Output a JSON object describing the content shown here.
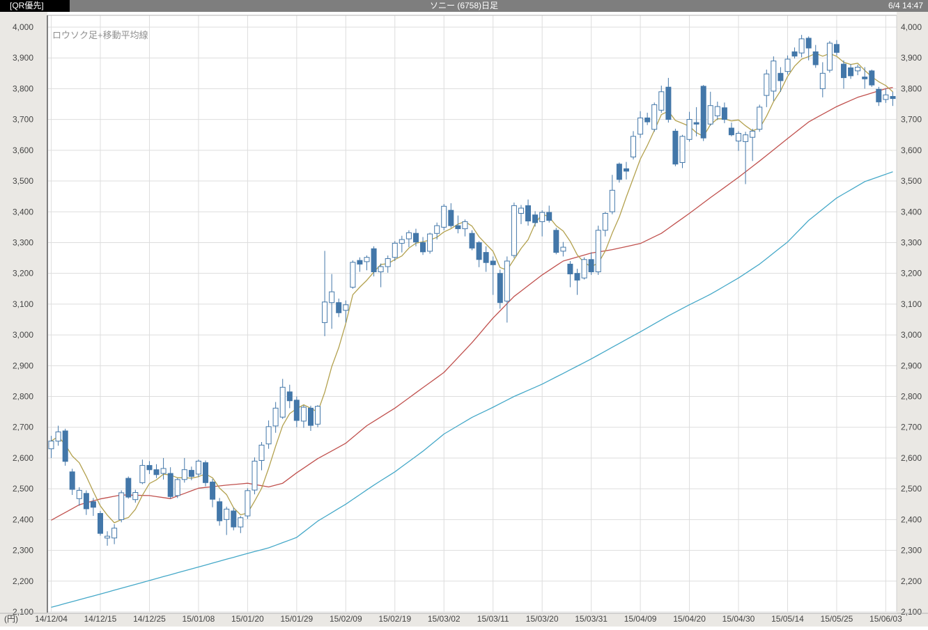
{
  "header": {
    "left_badge": "[QR優先]",
    "title": "ソニー (6758)日足",
    "time": "6/4 14:47"
  },
  "chart": {
    "legend_label": "ロウソク足+移動平均線",
    "unit_label": "(円)",
    "colors": {
      "header_bg": "#7e7e7e",
      "header_box_bg": "#000000",
      "axis_strip_bg": "#eae8e4",
      "plot_bg": "#ffffff",
      "grid": "#dddddd",
      "axis_line": "#7f7f7f",
      "border_line": "#b2b2b2",
      "label_text": "#444444",
      "legend_text": "#8f8f8f",
      "candle_up_fill": "#ffffff",
      "candle_down_fill": "#4377a9",
      "candle_stroke": "#4377a9",
      "ma_short": "#b3a14e",
      "ma_mid": "#c0504d",
      "ma_long": "#44a8c8"
    }
  },
  "chart_data": {
    "type": "candlestick",
    "title": "ソニー (6758)日足",
    "legend": "ロウソク足+移動平均線",
    "y_axis": {
      "min": 2100,
      "max": 4000,
      "step": 100,
      "unit": "円",
      "sides": [
        "left",
        "right"
      ]
    },
    "grid": true,
    "x_ticks": [
      {
        "i": 0,
        "label": "14/12/04"
      },
      {
        "i": 7,
        "label": "14/12/15"
      },
      {
        "i": 14,
        "label": "14/12/25"
      },
      {
        "i": 21,
        "label": "15/01/08"
      },
      {
        "i": 28,
        "label": "15/01/20"
      },
      {
        "i": 35,
        "label": "15/01/29"
      },
      {
        "i": 42,
        "label": "15/02/09"
      },
      {
        "i": 49,
        "label": "15/02/19"
      },
      {
        "i": 56,
        "label": "15/03/02"
      },
      {
        "i": 63,
        "label": "15/03/11"
      },
      {
        "i": 70,
        "label": "15/03/20"
      },
      {
        "i": 77,
        "label": "15/03/31"
      },
      {
        "i": 84,
        "label": "15/04/09"
      },
      {
        "i": 91,
        "label": "15/04/20"
      },
      {
        "i": 98,
        "label": "15/04/30"
      },
      {
        "i": 105,
        "label": "15/05/14"
      },
      {
        "i": 112,
        "label": "15/05/25"
      },
      {
        "i": 119,
        "label": "15/06/03"
      }
    ],
    "candle_format": [
      "date",
      "open",
      "high",
      "low",
      "close"
    ],
    "candles": [
      [
        "14/12/04",
        2630,
        2672,
        2600,
        2655
      ],
      [
        "14/12/05",
        2655,
        2705,
        2640,
        2685
      ],
      [
        "14/12/08",
        2688,
        2695,
        2575,
        2589
      ],
      [
        "14/12/09",
        2555,
        2565,
        2480,
        2498
      ],
      [
        "14/12/10",
        2468,
        2505,
        2445,
        2495
      ],
      [
        "14/12/11",
        2485,
        2495,
        2415,
        2435
      ],
      [
        "14/12/12",
        2458,
        2470,
        2412,
        2440
      ],
      [
        "14/12/15",
        2420,
        2428,
        2348,
        2355
      ],
      [
        "14/12/16",
        2340,
        2362,
        2315,
        2346
      ],
      [
        "14/12/17",
        2340,
        2385,
        2320,
        2372
      ],
      [
        "14/12/18",
        2400,
        2495,
        2391,
        2487
      ],
      [
        "14/12/19",
        2534,
        2540,
        2468,
        2473
      ],
      [
        "14/12/22",
        2465,
        2497,
        2455,
        2488
      ],
      [
        "14/12/24",
        2520,
        2595,
        2515,
        2576
      ],
      [
        "14/12/25",
        2576,
        2590,
        2548,
        2562
      ],
      [
        "14/12/26",
        2562,
        2580,
        2535,
        2546
      ],
      [
        "14/12/29",
        2550,
        2600,
        2530,
        2566
      ],
      [
        "14/12/30",
        2550,
        2570,
        2468,
        2475
      ],
      [
        "15/01/05",
        2478,
        2535,
        2470,
        2530
      ],
      [
        "15/01/06",
        2530,
        2600,
        2520,
        2562
      ],
      [
        "15/01/07",
        2560,
        2572,
        2528,
        2540
      ],
      [
        "15/01/08",
        2548,
        2595,
        2538,
        2590
      ],
      [
        "15/01/09",
        2585,
        2592,
        2508,
        2520
      ],
      [
        "15/01/13",
        2522,
        2532,
        2440,
        2466
      ],
      [
        "15/01/14",
        2458,
        2470,
        2380,
        2396
      ],
      [
        "15/01/15",
        2400,
        2442,
        2350,
        2434
      ],
      [
        "15/01/16",
        2428,
        2438,
        2365,
        2376
      ],
      [
        "15/01/19",
        2376,
        2412,
        2356,
        2406
      ],
      [
        "15/01/20",
        2412,
        2502,
        2402,
        2494
      ],
      [
        "15/01/21",
        2496,
        2602,
        2482,
        2590
      ],
      [
        "15/01/22",
        2592,
        2652,
        2560,
        2642
      ],
      [
        "15/01/23",
        2646,
        2722,
        2630,
        2702
      ],
      [
        "15/01/26",
        2704,
        2782,
        2682,
        2762
      ],
      [
        "15/01/27",
        2733,
        2857,
        2727,
        2830
      ],
      [
        "15/01/28",
        2815,
        2838,
        2762,
        2786
      ],
      [
        "15/01/29",
        2788,
        2800,
        2700,
        2722
      ],
      [
        "15/01/30",
        2720,
        2772,
        2698,
        2765
      ],
      [
        "15/02/02",
        2762,
        2770,
        2688,
        2706
      ],
      [
        "15/02/03",
        2710,
        2772,
        2700,
        2768
      ],
      [
        "15/02/04",
        3040,
        3273,
        2996,
        3107
      ],
      [
        "15/02/05",
        3105,
        3198,
        3020,
        3140
      ],
      [
        "15/02/06",
        3105,
        3118,
        3058,
        3072
      ],
      [
        "15/02/09",
        3080,
        3112,
        3040,
        3098
      ],
      [
        "15/02/10",
        3155,
        3242,
        3150,
        3236
      ],
      [
        "15/02/12",
        3242,
        3252,
        3205,
        3230
      ],
      [
        "15/02/13",
        3238,
        3258,
        3210,
        3252
      ],
      [
        "15/02/16",
        3280,
        3288,
        3190,
        3205
      ],
      [
        "15/02/17",
        3205,
        3232,
        3155,
        3222
      ],
      [
        "15/02/18",
        3222,
        3258,
        3202,
        3248
      ],
      [
        "15/02/19",
        3252,
        3305,
        3240,
        3298
      ],
      [
        "15/02/20",
        3298,
        3322,
        3268,
        3310
      ],
      [
        "15/02/23",
        3312,
        3340,
        3285,
        3332
      ],
      [
        "15/02/24",
        3330,
        3345,
        3288,
        3302
      ],
      [
        "15/02/25",
        3300,
        3318,
        3260,
        3270
      ],
      [
        "15/02/26",
        3272,
        3332,
        3264,
        3328
      ],
      [
        "15/02/27",
        3330,
        3365,
        3310,
        3355
      ],
      [
        "15/03/02",
        3350,
        3425,
        3340,
        3418
      ],
      [
        "15/03/03",
        3405,
        3428,
        3348,
        3355
      ],
      [
        "15/03/04",
        3355,
        3388,
        3330,
        3345
      ],
      [
        "15/03/05",
        3345,
        3375,
        3320,
        3368
      ],
      [
        "15/03/06",
        3330,
        3340,
        3275,
        3282
      ],
      [
        "15/03/09",
        3300,
        3305,
        3220,
        3245
      ],
      [
        "15/03/10",
        3268,
        3288,
        3205,
        3235
      ],
      [
        "15/03/11",
        3240,
        3255,
        3130,
        3228
      ],
      [
        "15/03/12",
        3200,
        3212,
        3085,
        3105
      ],
      [
        "15/03/13",
        3110,
        3255,
        3040,
        3240
      ],
      [
        "15/03/16",
        3258,
        3430,
        3250,
        3420
      ],
      [
        "15/03/17",
        3395,
        3422,
        3360,
        3412
      ],
      [
        "15/03/18",
        3420,
        3440,
        3355,
        3370
      ],
      [
        "15/03/19",
        3390,
        3402,
        3352,
        3365
      ],
      [
        "15/03/20",
        3368,
        3405,
        3320,
        3398
      ],
      [
        "15/03/23",
        3398,
        3420,
        3365,
        3372
      ],
      [
        "15/03/24",
        3340,
        3348,
        3262,
        3268
      ],
      [
        "15/03/25",
        3272,
        3302,
        3255,
        3285
      ],
      [
        "15/03/26",
        3230,
        3240,
        3155,
        3198
      ],
      [
        "15/03/27",
        3200,
        3215,
        3130,
        3178
      ],
      [
        "15/03/30",
        3185,
        3252,
        3180,
        3245
      ],
      [
        "15/03/31",
        3245,
        3268,
        3195,
        3205
      ],
      [
        "15/04/01",
        3205,
        3355,
        3195,
        3340
      ],
      [
        "15/04/02",
        3340,
        3400,
        3320,
        3395
      ],
      [
        "15/04/03",
        3400,
        3520,
        3392,
        3470
      ],
      [
        "15/04/06",
        3555,
        3560,
        3495,
        3505
      ],
      [
        "15/04/07",
        3540,
        3562,
        3505,
        3532
      ],
      [
        "15/04/08",
        3578,
        3662,
        3570,
        3645
      ],
      [
        "15/04/09",
        3652,
        3727,
        3640,
        3705
      ],
      [
        "15/04/10",
        3705,
        3722,
        3682,
        3692
      ],
      [
        "15/04/13",
        3668,
        3755,
        3660,
        3748
      ],
      [
        "15/04/14",
        3730,
        3810,
        3722,
        3790
      ],
      [
        "15/04/15",
        3805,
        3835,
        3690,
        3700
      ],
      [
        "15/04/16",
        3662,
        3670,
        3548,
        3555
      ],
      [
        "15/04/17",
        3560,
        3650,
        3542,
        3645
      ],
      [
        "15/04/20",
        3635,
        3725,
        3628,
        3700
      ],
      [
        "15/04/21",
        3690,
        3740,
        3645,
        3685
      ],
      [
        "15/04/22",
        3808,
        3812,
        3630,
        3640
      ],
      [
        "15/04/23",
        3685,
        3790,
        3680,
        3745
      ],
      [
        "15/04/24",
        3712,
        3758,
        3698,
        3742
      ],
      [
        "15/04/27",
        3738,
        3755,
        3688,
        3700
      ],
      [
        "15/04/28",
        3672,
        3690,
        3645,
        3650
      ],
      [
        "15/04/30",
        3630,
        3662,
        3598,
        3655
      ],
      [
        "15/05/01",
        3628,
        3660,
        3490,
        3650
      ],
      [
        "15/05/07",
        3642,
        3670,
        3565,
        3662
      ],
      [
        "15/05/08",
        3668,
        3748,
        3660,
        3740
      ],
      [
        "15/05/11",
        3778,
        3862,
        3740,
        3848
      ],
      [
        "15/05/12",
        3792,
        3905,
        3760,
        3890
      ],
      [
        "15/05/13",
        3850,
        3870,
        3790,
        3826
      ],
      [
        "15/05/14",
        3856,
        3908,
        3846,
        3896
      ],
      [
        "15/05/15",
        3920,
        3934,
        3898,
        3906
      ],
      [
        "15/05/18",
        3916,
        3975,
        3902,
        3962
      ],
      [
        "15/05/19",
        3964,
        3970,
        3892,
        3932
      ],
      [
        "15/05/20",
        3920,
        3942,
        3868,
        3878
      ],
      [
        "15/05/21",
        3800,
        3886,
        3772,
        3850
      ],
      [
        "15/05/22",
        3860,
        3955,
        3852,
        3948
      ],
      [
        "15/05/25",
        3944,
        3958,
        3908,
        3918
      ],
      [
        "15/05/26",
        3880,
        3892,
        3800,
        3836
      ],
      [
        "15/05/27",
        3868,
        3880,
        3832,
        3842
      ],
      [
        "15/05/28",
        3858,
        3878,
        3844,
        3870
      ],
      [
        "15/05/29",
        3838,
        3870,
        3800,
        3832
      ],
      [
        "15/06/01",
        3858,
        3862,
        3806,
        3812
      ],
      [
        "15/06/02",
        3798,
        3806,
        3744,
        3757
      ],
      [
        "15/06/03",
        3765,
        3800,
        3754,
        3780
      ],
      [
        "15/06/04",
        3775,
        3790,
        3744,
        3768
      ]
    ],
    "moving_averages": {
      "short": {
        "series": "close-sma",
        "window": 5,
        "color": "#b3a14e"
      },
      "mid": {
        "series": "sampled",
        "color": "#c0504d",
        "points": [
          [
            0,
            2398
          ],
          [
            4,
            2448
          ],
          [
            7,
            2467
          ],
          [
            10,
            2480
          ],
          [
            14,
            2478
          ],
          [
            17,
            2468
          ],
          [
            21,
            2502
          ],
          [
            25,
            2512
          ],
          [
            28,
            2518
          ],
          [
            31,
            2506
          ],
          [
            33,
            2518
          ],
          [
            35,
            2552
          ],
          [
            38,
            2598
          ],
          [
            42,
            2648
          ],
          [
            45,
            2705
          ],
          [
            49,
            2762
          ],
          [
            52,
            2812
          ],
          [
            56,
            2878
          ],
          [
            60,
            2975
          ],
          [
            63,
            3055
          ],
          [
            66,
            3125
          ],
          [
            70,
            3195
          ],
          [
            73,
            3240
          ],
          [
            77,
            3266
          ],
          [
            80,
            3277
          ],
          [
            84,
            3297
          ],
          [
            87,
            3330
          ],
          [
            91,
            3395
          ],
          [
            94,
            3446
          ],
          [
            98,
            3512
          ],
          [
            101,
            3565
          ],
          [
            105,
            3638
          ],
          [
            108,
            3692
          ],
          [
            112,
            3742
          ],
          [
            115,
            3772
          ],
          [
            119,
            3800
          ],
          [
            120,
            3804
          ]
        ]
      },
      "long": {
        "series": "sampled",
        "color": "#44a8c8",
        "points": [
          [
            0,
            2115
          ],
          [
            7,
            2158
          ],
          [
            14,
            2202
          ],
          [
            21,
            2246
          ],
          [
            28,
            2290
          ],
          [
            31,
            2308
          ],
          [
            35,
            2342
          ],
          [
            38,
            2395
          ],
          [
            42,
            2450
          ],
          [
            46,
            2512
          ],
          [
            49,
            2555
          ],
          [
            53,
            2622
          ],
          [
            56,
            2678
          ],
          [
            60,
            2732
          ],
          [
            63,
            2765
          ],
          [
            66,
            2800
          ],
          [
            70,
            2840
          ],
          [
            73,
            2875
          ],
          [
            77,
            2922
          ],
          [
            80,
            2960
          ],
          [
            84,
            3010
          ],
          [
            88,
            3062
          ],
          [
            91,
            3098
          ],
          [
            94,
            3132
          ],
          [
            98,
            3185
          ],
          [
            101,
            3230
          ],
          [
            105,
            3302
          ],
          [
            108,
            3372
          ],
          [
            112,
            3445
          ],
          [
            116,
            3498
          ],
          [
            119,
            3522
          ],
          [
            120,
            3530
          ]
        ]
      }
    }
  }
}
